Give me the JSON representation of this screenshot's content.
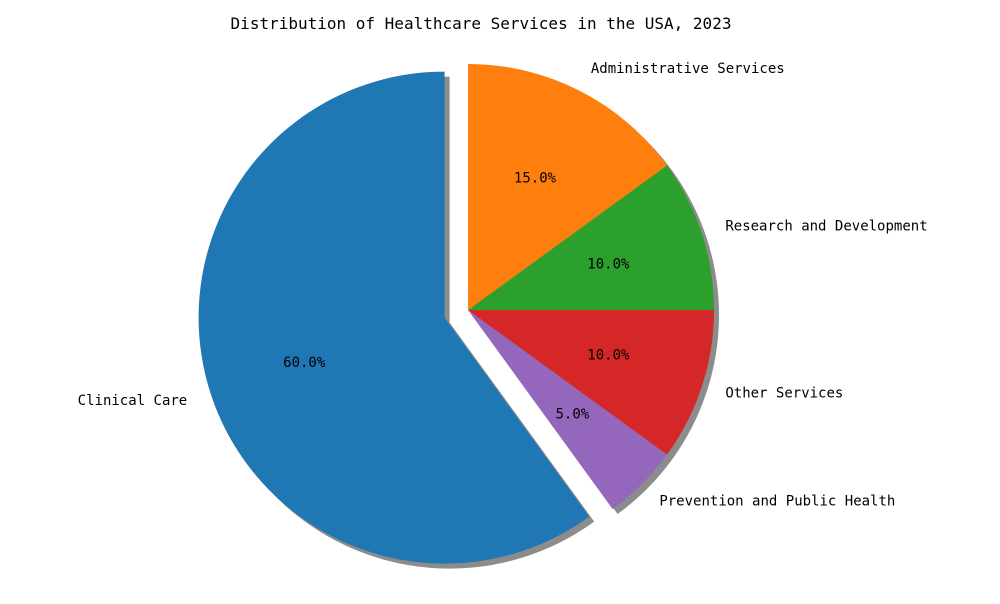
{
  "chart_data": {
    "type": "pie",
    "title": "Distribution of Healthcare Services in the USA, 2023",
    "start_angle_deg": 90,
    "direction": "counterclockwise",
    "shadow": true,
    "exploded": [
      "Clinical Care"
    ],
    "slices": [
      {
        "label": "Clinical Care",
        "value": 60.0,
        "pct_label": "60.0%",
        "color": "#1f77b4"
      },
      {
        "label": "Prevention and Public Health",
        "value": 5.0,
        "pct_label": "5.0%",
        "color": "#9467bd"
      },
      {
        "label": "Other Services",
        "value": 10.0,
        "pct_label": "10.0%",
        "color": "#d62728"
      },
      {
        "label": "Research and Development",
        "value": 10.0,
        "pct_label": "10.0%",
        "color": "#2ca02c"
      },
      {
        "label": "Administrative Services",
        "value": 15.0,
        "pct_label": "15.0%",
        "color": "#ff7f0e"
      }
    ]
  }
}
